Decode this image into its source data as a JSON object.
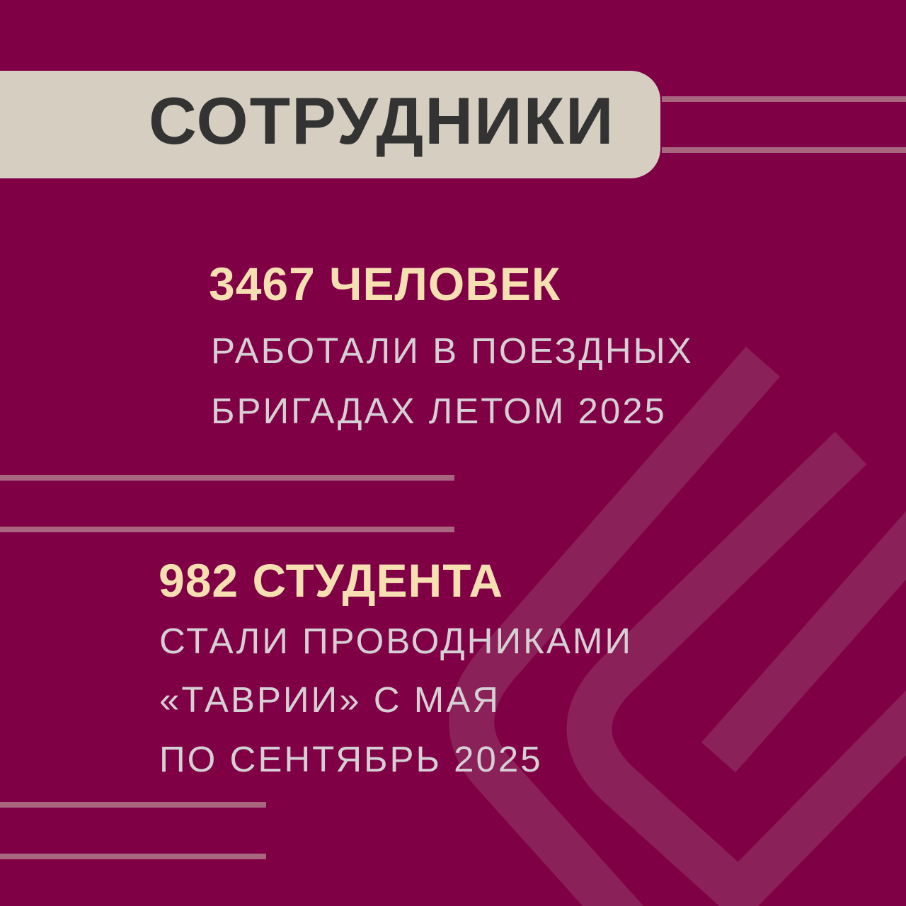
{
  "header": {
    "title": "СОТРУДНИКИ"
  },
  "block1": {
    "headline": "3467 ЧЕЛОВЕК",
    "lines": [
      "РАБОТАЛИ В ПОЕЗДНЫХ",
      "БРИГАДАХ ЛЕТОМ 2025"
    ]
  },
  "block2": {
    "headline": "982 СТУДЕНТА",
    "lines": [
      "СТАЛИ ПРОВОДНИКАМИ",
      "«ТАВРИИ» С МАЯ",
      "ПО СЕНТЯБРЬ 2025"
    ]
  },
  "colors": {
    "background": "#800046",
    "header_pill": "#d6cfc1",
    "headline": "#f6e0b2",
    "body_text": "#d5d0d3",
    "decor": "#8b2159"
  }
}
